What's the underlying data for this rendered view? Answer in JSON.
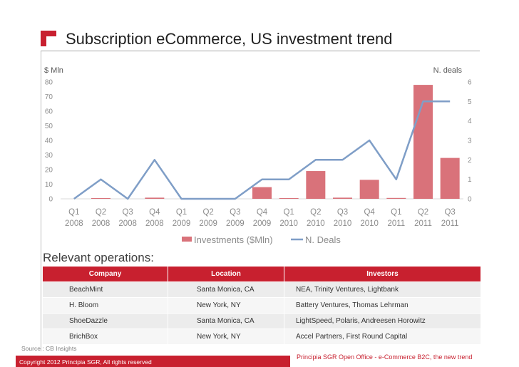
{
  "slide": {
    "title": "Subscription eCommerce, US investment trend",
    "ops_title": "Relevant operations:",
    "source": "Source : CB Insights",
    "footer_right": "Principia SGR Open Office - e-Commerce B2C, the new trend",
    "footer_left": "Copyright 2012 Principia SGR, All rights reserved"
  },
  "colors": {
    "brand_red": "#c8202f",
    "bar": "#d9727a",
    "line": "#7f9ec7"
  },
  "chart_data": {
    "type": "bar",
    "left_axis_label": "$ Mln",
    "right_axis_label": "N. deals",
    "categories": [
      [
        "Q1",
        "2008"
      ],
      [
        "Q2",
        "2008"
      ],
      [
        "Q3",
        "2008"
      ],
      [
        "Q4",
        "2008"
      ],
      [
        "Q1",
        "2009"
      ],
      [
        "Q2",
        "2009"
      ],
      [
        "Q3",
        "2009"
      ],
      [
        "Q4",
        "2009"
      ],
      [
        "Q1",
        "2010"
      ],
      [
        "Q2",
        "2010"
      ],
      [
        "Q3",
        "2010"
      ],
      [
        "Q4",
        "2010"
      ],
      [
        "Q1",
        "2011"
      ],
      [
        "Q2",
        "2011"
      ],
      [
        "Q3",
        "2011"
      ]
    ],
    "series": [
      {
        "name": "Investments ($Mln)",
        "type": "bar",
        "axis": "left",
        "values": [
          0,
          0.3,
          0,
          0.8,
          0,
          0,
          0,
          8,
          0.3,
          19,
          0.8,
          13,
          0.6,
          78,
          28
        ]
      },
      {
        "name": "N. Deals",
        "type": "line",
        "axis": "right",
        "values": [
          0,
          1,
          0,
          2,
          0,
          0,
          0,
          1,
          1,
          2,
          2,
          3,
          1,
          5,
          5
        ]
      }
    ],
    "left_ticks": [
      0,
      10,
      20,
      30,
      40,
      50,
      60,
      70,
      80
    ],
    "right_ticks": [
      0,
      1,
      2,
      3,
      4,
      5,
      6
    ],
    "ylim_left": [
      0,
      80
    ],
    "ylim_right": [
      0,
      6
    ],
    "grid": false,
    "legend_position": "bottom"
  },
  "operations": {
    "headers": [
      "Company",
      "Location",
      "Investors"
    ],
    "rows": [
      [
        "BeachMint",
        "Santa Monica, CA",
        "NEA, Trinity Ventures, Lightbank"
      ],
      [
        "H. Bloom",
        "New York, NY",
        "Battery Ventures, Thomas Lehrman"
      ],
      [
        "ShoeDazzle",
        "Santa Monica, CA",
        "LightSpeed,  Polaris, Andreesen Horowitz"
      ],
      [
        "BrichBox",
        "New York, NY",
        "Accel Partners, First Round Capital"
      ]
    ]
  }
}
